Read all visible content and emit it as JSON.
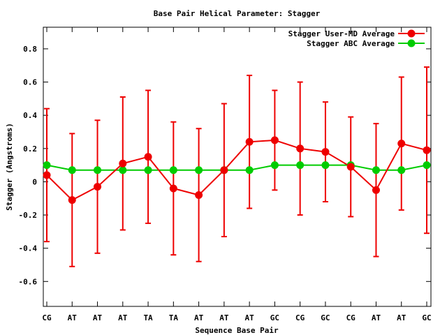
{
  "chart_data": {
    "type": "line",
    "title": "Base Pair Helical Parameter: Stagger",
    "xlabel": "Sequence Base Pair",
    "ylabel": "Stagger (Angstroms)",
    "categories": [
      "CG",
      "AT",
      "AT",
      "AT",
      "TA",
      "TA",
      "AT",
      "AT",
      "AT",
      "GC",
      "CG",
      "GC",
      "CG",
      "AT",
      "AT",
      "GC"
    ],
    "ylim": [
      -0.75,
      0.93
    ],
    "yticks": [
      -0.6,
      -0.4,
      -0.2,
      0,
      0.2,
      0.4,
      0.6,
      0.8
    ],
    "ytick_labels": [
      "-0.6",
      "-0.4",
      "-0.2",
      "0",
      "0.2",
      "0.4",
      "0.6",
      "0.8"
    ],
    "legend_position": "top-right",
    "grid": false,
    "series": [
      {
        "name": "Stagger User-MD Average",
        "color": "#ee0000",
        "values": [
          0.04,
          -0.11,
          -0.03,
          0.11,
          0.15,
          -0.04,
          -0.08,
          0.07,
          0.24,
          0.25,
          0.2,
          0.18,
          0.09,
          -0.05,
          0.23,
          0.19
        ],
        "error_low": [
          -0.36,
          -0.51,
          -0.43,
          -0.29,
          -0.25,
          -0.44,
          -0.48,
          -0.33,
          -0.16,
          -0.05,
          -0.2,
          -0.12,
          -0.21,
          -0.45,
          -0.17,
          -0.31
        ],
        "error_high": [
          0.44,
          0.29,
          0.37,
          0.51,
          0.55,
          0.36,
          0.32,
          0.47,
          0.64,
          0.55,
          0.6,
          0.48,
          0.39,
          0.35,
          0.63,
          0.69
        ]
      },
      {
        "name": "Stagger ABC Average",
        "color": "#00cc00",
        "values": [
          0.1,
          0.07,
          0.07,
          0.07,
          0.07,
          0.07,
          0.07,
          0.07,
          0.07,
          0.1,
          0.1,
          0.1,
          0.1,
          0.07,
          0.07,
          0.1
        ]
      }
    ]
  }
}
